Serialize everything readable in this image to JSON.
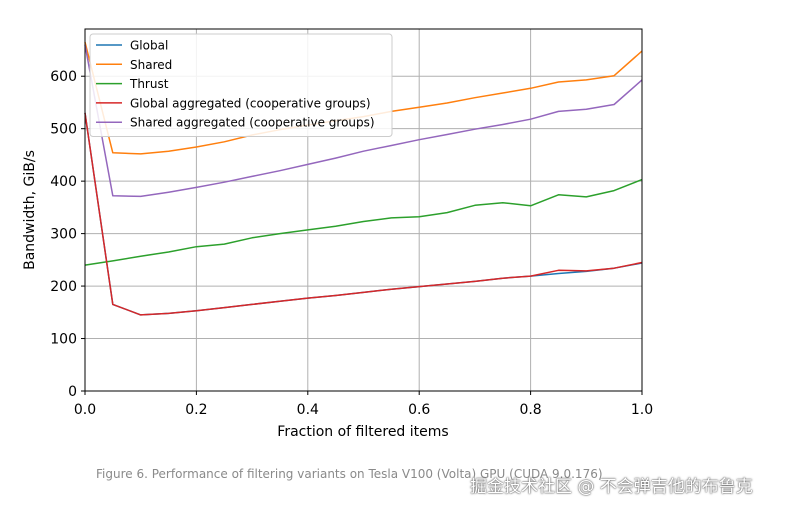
{
  "chart_data": {
    "type": "line",
    "xlabel": "Fraction of filtered items",
    "ylabel": "Bandwidth, GiB/s",
    "xlim": [
      0,
      1
    ],
    "ylim": [
      0,
      690
    ],
    "xticks": [
      0.0,
      0.2,
      0.4,
      0.6,
      0.8,
      1.0
    ],
    "xtick_labels": [
      "0.0",
      "0.2",
      "0.4",
      "0.6",
      "0.8",
      "1.0"
    ],
    "yticks": [
      0,
      100,
      200,
      300,
      400,
      500,
      600
    ],
    "ytick_labels": [
      "0",
      "100",
      "200",
      "300",
      "400",
      "500",
      "600"
    ],
    "grid": true,
    "legend_position": "top-left",
    "x": [
      0.0,
      0.05,
      0.1,
      0.15,
      0.2,
      0.25,
      0.3,
      0.35,
      0.4,
      0.45,
      0.5,
      0.55,
      0.6,
      0.65,
      0.7,
      0.75,
      0.8,
      0.85,
      0.9,
      0.95,
      1.0
    ],
    "series": [
      {
        "name": "Global",
        "color": "#1f77b4",
        "values": [
          530,
          165,
          145,
          148,
          153,
          159,
          165,
          171,
          177,
          182,
          188,
          194,
          199,
          204,
          209,
          215,
          219,
          224,
          228,
          234,
          244
        ]
      },
      {
        "name": "Shared",
        "color": "#ff7f0e",
        "values": [
          665,
          454,
          452,
          457,
          465,
          475,
          488,
          498,
          507,
          515,
          523,
          533,
          541,
          549,
          559,
          568,
          577,
          589,
          593,
          601,
          648
        ]
      },
      {
        "name": "Thrust",
        "color": "#2ca02c",
        "values": [
          240,
          248,
          257,
          265,
          275,
          280,
          292,
          300,
          307,
          314,
          323,
          330,
          332,
          340,
          354,
          359,
          353,
          374,
          370,
          382,
          403
        ]
      },
      {
        "name": "Global aggregated (cooperative groups)",
        "color": "#d62728",
        "values": [
          530,
          165,
          145,
          148,
          153,
          159,
          165,
          171,
          177,
          182,
          188,
          194,
          199,
          204,
          209,
          215,
          219,
          230,
          229,
          234,
          245
        ]
      },
      {
        "name": "Shared aggregated (cooperative groups)",
        "color": "#9467bd",
        "values": [
          660,
          372,
          371,
          379,
          388,
          398,
          409,
          420,
          432,
          444,
          457,
          468,
          479,
          489,
          499,
          508,
          518,
          533,
          537,
          546,
          593
        ]
      }
    ]
  },
  "caption": "Figure 6. Performance of filtering variants on Tesla V100 (Volta) GPU (CUDA 9.0.176)",
  "watermark": "掘金技术社区 @ 不会弹吉他的布鲁克"
}
